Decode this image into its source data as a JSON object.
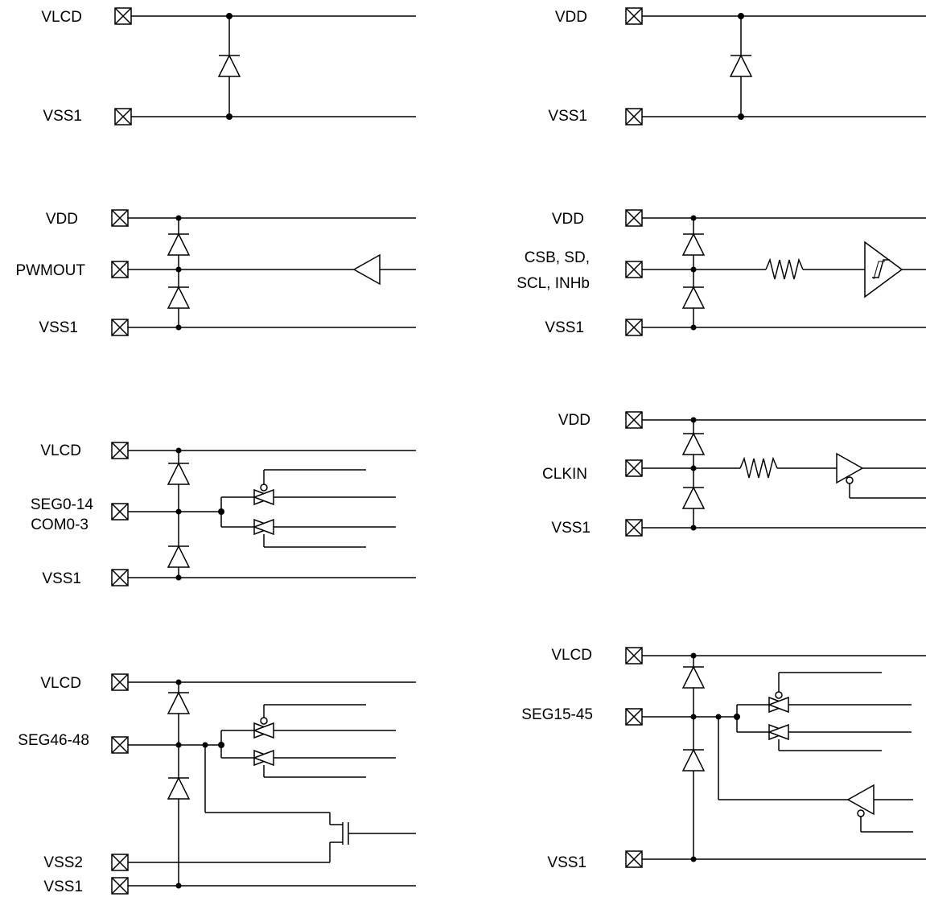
{
  "circuits": {
    "c1": {
      "vlcd": "VLCD",
      "vss1": "VSS1"
    },
    "c2": {
      "vdd": "VDD",
      "vss1": "VSS1"
    },
    "c3": {
      "vdd": "VDD",
      "pwmout": "PWMOUT",
      "vss1": "VSS1"
    },
    "c4": {
      "vdd": "VDD",
      "input_line1": "CSB, SD,",
      "input_line2": "SCL, INHb",
      "vss1": "VSS1"
    },
    "c5": {
      "vlcd": "VLCD",
      "seg_line1": "SEG0-14",
      "seg_line2": "COM0-3",
      "vss1": "VSS1"
    },
    "c6": {
      "vdd": "VDD",
      "clkin": "CLKIN",
      "vss1": "VSS1"
    },
    "c7": {
      "vlcd": "VLCD",
      "seg": "SEG46-48",
      "vss2": "VSS2",
      "vss1": "VSS1"
    },
    "c8": {
      "vlcd": "VLCD",
      "seg": "SEG15-45",
      "vss1": "VSS1"
    }
  }
}
